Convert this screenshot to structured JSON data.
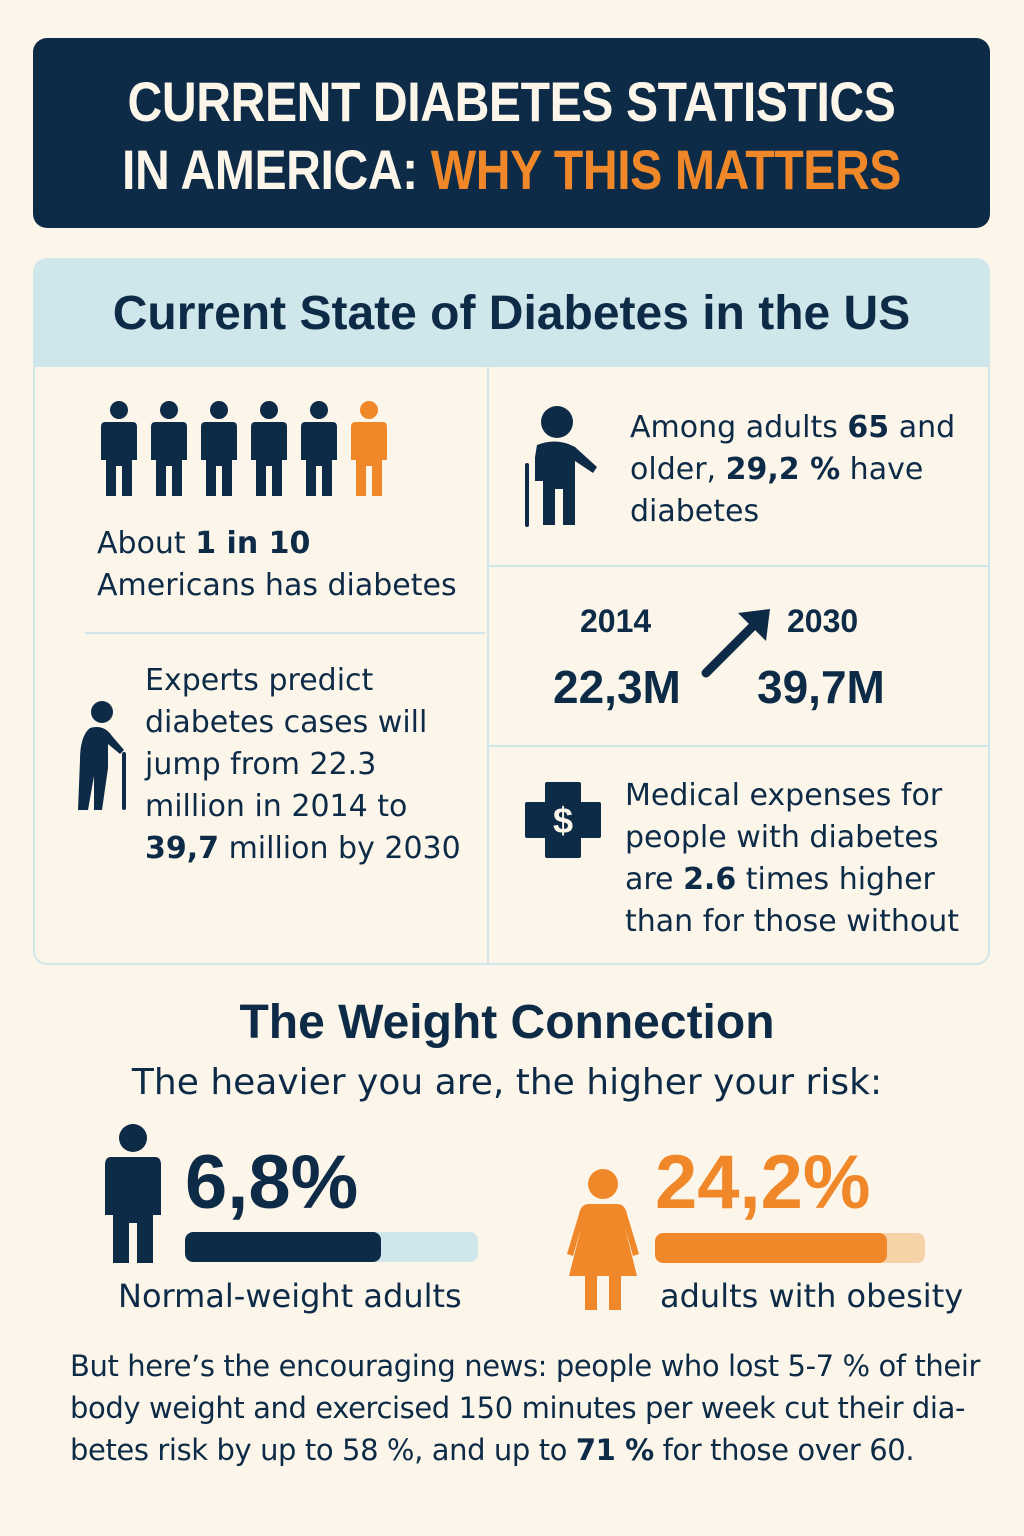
{
  "title": {
    "line1": "CURRENT DIABETES STATISTICS",
    "line2_white": "IN AMERICA: ",
    "line2_orange": "WHY THIS MATTERS"
  },
  "colors": {
    "navy": "#0d2b47",
    "orange": "#f0882a",
    "light_blue": "#cfe6ea",
    "background": "#fbf5ea",
    "light_orange": "#f7d2a8"
  },
  "current_state": {
    "heading": "Current State of Diabetes in the US",
    "one_in_ten": {
      "pre": "About ",
      "bold": "1 in 10",
      "post": " Americans has diabetes",
      "icons": [
        "person-icon",
        "person-icon",
        "person-icon",
        "person-icon",
        "person-icon",
        "person-icon-highlighted"
      ]
    },
    "seniors": {
      "pre": "Among adults ",
      "bold1": "65",
      "mid": " and older, ",
      "bold2": "29,2 %",
      "post": " have diabetes",
      "icon": "elderly-person-cane-icon"
    },
    "projection": {
      "year_from": "2014",
      "value_from": "22,3M",
      "year_to": "2030",
      "value_to": "39,7M",
      "icon": "arrow-up-right-icon"
    },
    "experts": {
      "pre": "Experts predict diabetes cases will jump from 22.3 million in 2014 to ",
      "bold": "39,7",
      "post": " million by 2030",
      "icon": "elderly-person-cane-icon"
    },
    "expenses": {
      "pre": "Medical expenses for people with diabetes are ",
      "bold": "2.6",
      "post": " times higher than for those without",
      "icon": "medical-cross-dollar-icon",
      "icon_glyph": "$"
    }
  },
  "weight": {
    "heading": "The Weight Connection",
    "subheading": "The heavier you are, the higher your risk:",
    "normal": {
      "value": "6,8%",
      "label": "Normal-weight adults",
      "bar_fill_fraction": 0.67,
      "icon": "man-icon"
    },
    "obese": {
      "value": "24,2%",
      "label": "adults with obesity",
      "bar_fill_fraction": 0.86,
      "icon": "woman-icon"
    }
  },
  "footer": {
    "pre": "But here’s the encouraging news: people who lost 5-7 % of their body weight and exercised 150 minutes per week cut their dia­betes risk by up to 58 %, and up to ",
    "bold": "71 %",
    "post": " for those over 60."
  }
}
